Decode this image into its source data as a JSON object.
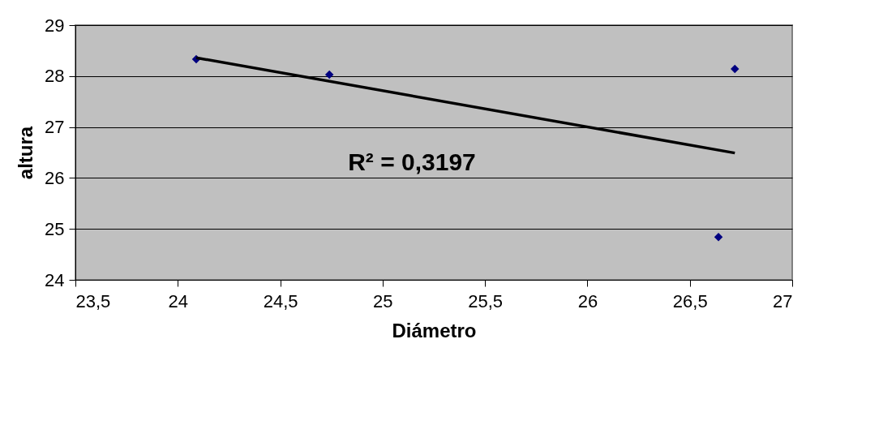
{
  "chart_data": {
    "type": "scatter",
    "xlabel": "Diámetro",
    "ylabel": "altura",
    "series": [
      {
        "color": "#000080",
        "marker": "diamond",
        "x": [
          24.09,
          24.74,
          26.64,
          26.72
        ],
        "values": [
          28.33,
          28.03,
          24.84,
          28.14
        ]
      },
      {
        "type": "line",
        "color": "#000000",
        "x": [
          24.09,
          26.72
        ],
        "values": [
          28.36,
          26.49
        ]
      }
    ],
    "xlim": [
      23.5,
      27
    ],
    "xticks": [
      {
        "value": 23.5,
        "label": "23,5"
      },
      24,
      {
        "value": 24.5,
        "label": "24,5"
      },
      25,
      {
        "value": 25.5,
        "label": "25,5"
      },
      26,
      {
        "value": 26.5,
        "label": "26,5"
      },
      27
    ],
    "ylim": [
      24,
      29
    ],
    "yticks": [
      24,
      25,
      26,
      27,
      28,
      29
    ],
    "grid": "y",
    "annotations": [
      "R² = 0,3197"
    ]
  }
}
